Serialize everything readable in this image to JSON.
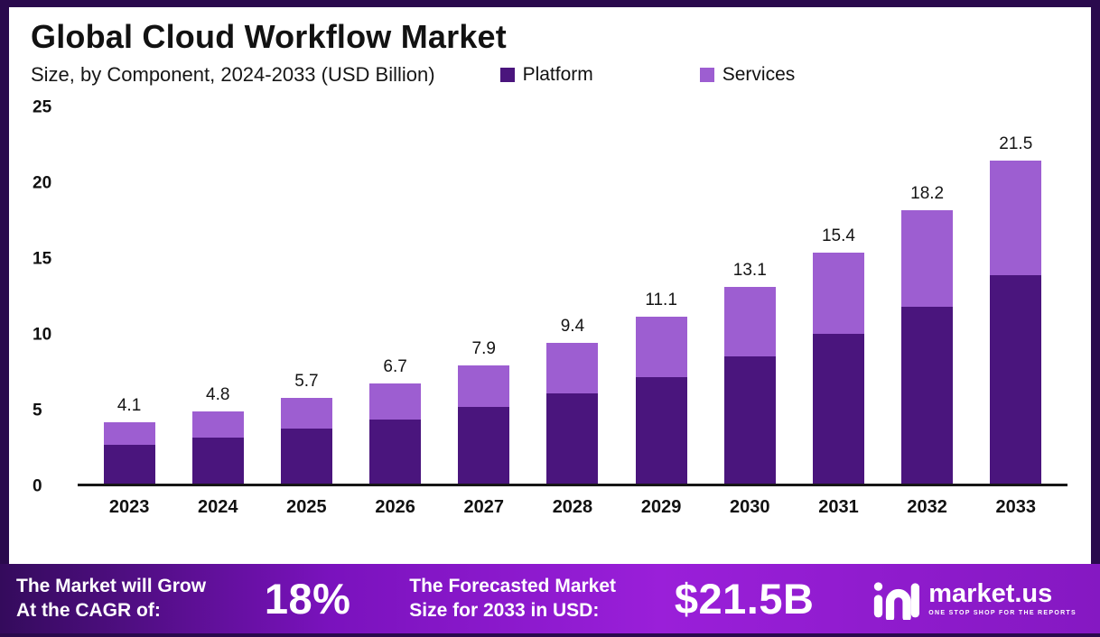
{
  "header": {
    "title": "Global Cloud Workflow Market",
    "subtitle": "Size, by Component, 2024-2033 (USD Billion)"
  },
  "legend": [
    {
      "label": "Platform",
      "color": "#4a157d"
    },
    {
      "label": "Services",
      "color": "#9d5ed1"
    }
  ],
  "chart_data": {
    "type": "bar",
    "stacked": true,
    "title": "Global Cloud Workflow Market",
    "subtitle": "Size, by Component, 2024-2033 (USD Billion)",
    "categories": [
      "2023",
      "2024",
      "2025",
      "2026",
      "2027",
      "2028",
      "2029",
      "2030",
      "2031",
      "2032",
      "2033"
    ],
    "series": [
      {
        "name": "Platform",
        "color": "#4a157d",
        "values": [
          2.6,
          3.1,
          3.7,
          4.3,
          5.1,
          6.0,
          7.1,
          8.5,
          10.0,
          11.8,
          13.9
        ]
      },
      {
        "name": "Services",
        "color": "#9d5ed1",
        "values": [
          1.5,
          1.7,
          2.0,
          2.4,
          2.8,
          3.4,
          4.0,
          4.6,
          5.4,
          6.4,
          7.6
        ]
      }
    ],
    "totals": [
      4.1,
      4.8,
      5.7,
      6.7,
      7.9,
      9.4,
      11.1,
      13.1,
      15.4,
      18.2,
      21.5
    ],
    "total_labels": [
      "4.1",
      "4.8",
      "5.7",
      "6.7",
      "7.9",
      "9.4",
      "11.1",
      "13.1",
      "15.4",
      "18.2",
      "21.5"
    ],
    "xlabel": "",
    "ylabel": "",
    "ylim": [
      0,
      25
    ],
    "yticks": [
      0,
      5,
      10,
      15,
      20,
      25
    ],
    "grid": false,
    "legend_position": "top"
  },
  "banner": {
    "cagr_label_line1": "The Market will Grow",
    "cagr_label_line2": "At the CAGR of:",
    "cagr_value": "18%",
    "forecast_label_line1": "The Forecasted Market",
    "forecast_label_line2": "Size for 2033 in USD:",
    "forecast_value": "$21.5B",
    "logo_text": "market.us",
    "logo_tagline": "ONE STOP SHOP FOR THE REPORTS"
  },
  "colors": {
    "platform": "#4a157d",
    "services": "#9d5ed1",
    "frame": "#2a0a4d",
    "banner_gradient": [
      "#340b5c",
      "#7a12bd",
      "#9a1fd9",
      "#8518c2"
    ],
    "text": "#111111",
    "banner_text": "#ffffff"
  }
}
